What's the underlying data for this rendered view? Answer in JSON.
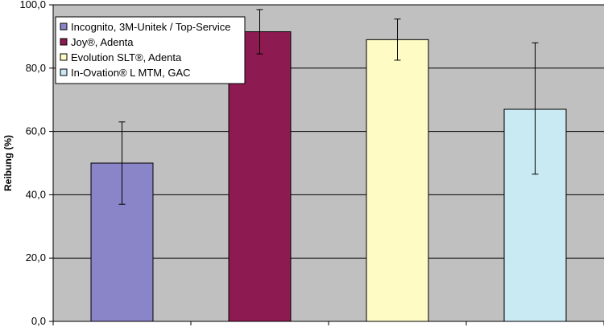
{
  "chart_data": {
    "type": "bar",
    "title": "",
    "xlabel": "",
    "ylabel": "Reibung (%)",
    "ylim": [
      0,
      100
    ],
    "yticks": [
      "0,0",
      "20,0",
      "40,0",
      "60,0",
      "80,0",
      "100,0"
    ],
    "grid": true,
    "legend_position": "top-left",
    "plot_background": "#c0c0c0",
    "series": [
      {
        "name": "Incognito, 3M-Unitek / Top-Service",
        "value": 50.0,
        "error_low": 37.0,
        "error_high": 63.0,
        "color": "#8a84c9"
      },
      {
        "name": "Joy®, Adenta",
        "value": 91.5,
        "error_low": 84.5,
        "error_high": 98.5,
        "color": "#8e1a52"
      },
      {
        "name": "Evolution SLT®, Adenta",
        "value": 89.0,
        "error_low": 82.5,
        "error_high": 95.5,
        "color": "#fefbc4"
      },
      {
        "name": "In-Ovation® L MTM, GAC",
        "value": 67.0,
        "error_low": 46.5,
        "error_high": 88.0,
        "color": "#c9e9f3"
      }
    ]
  }
}
